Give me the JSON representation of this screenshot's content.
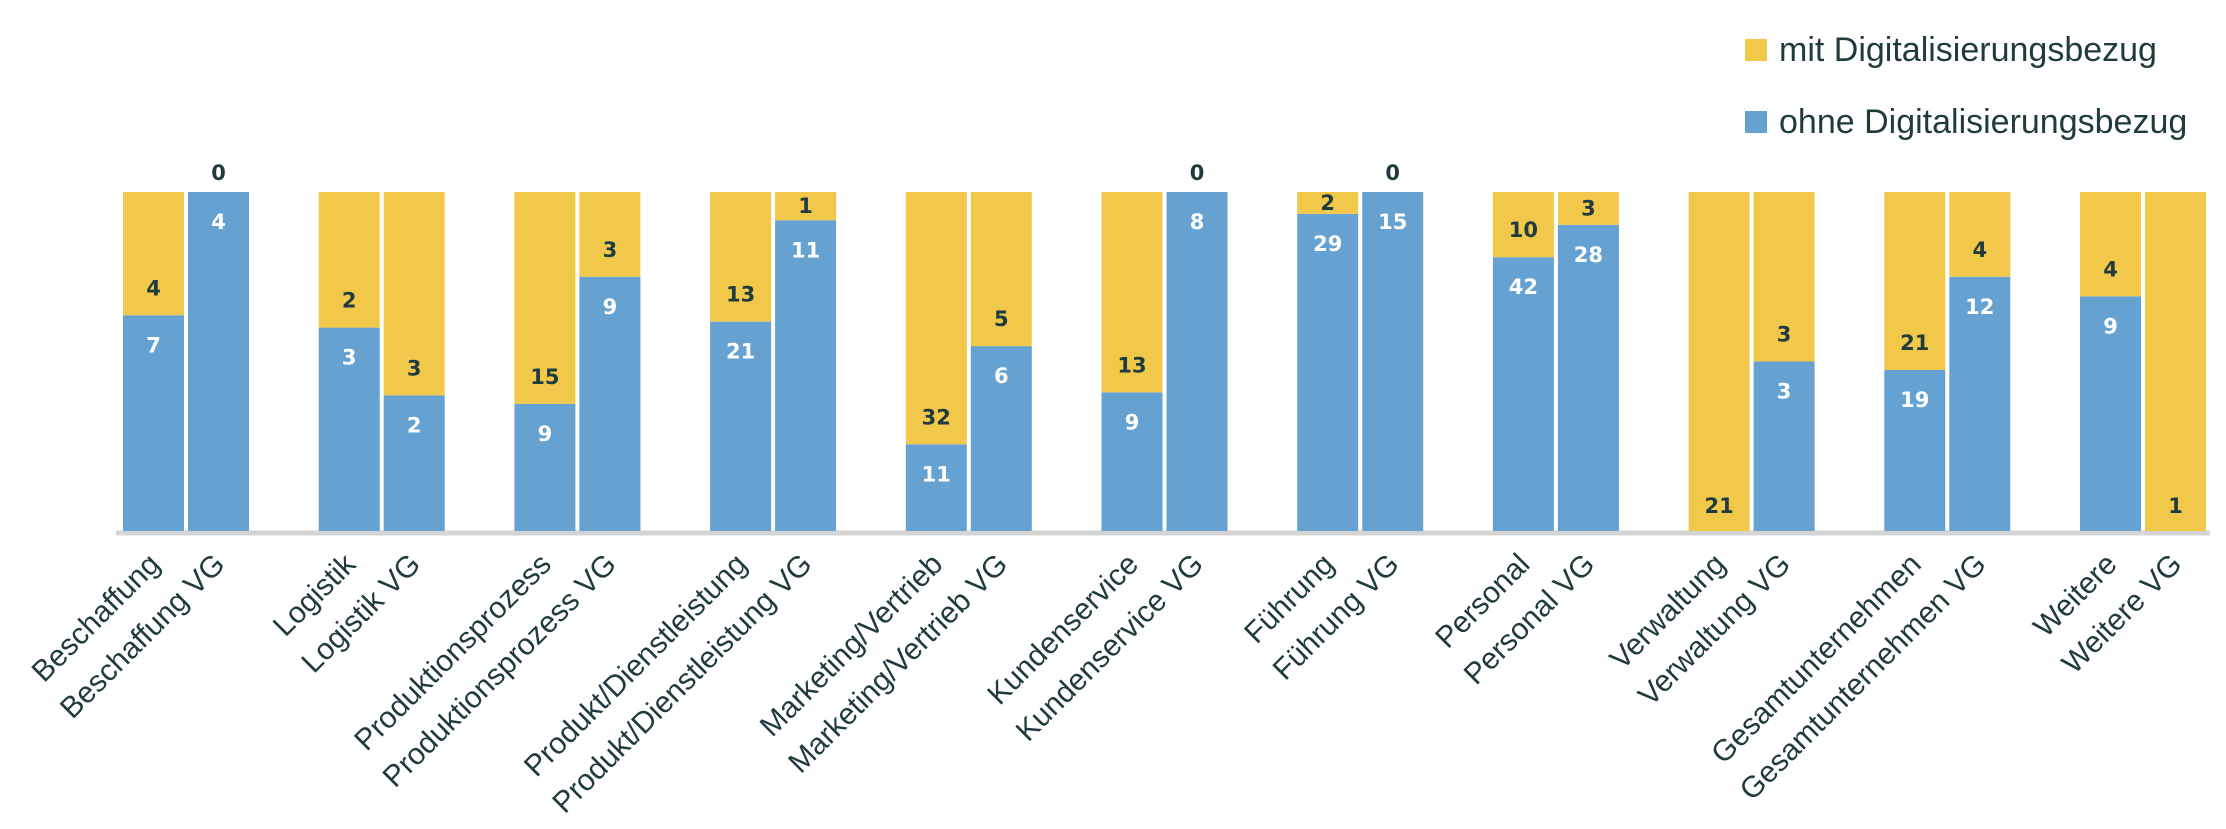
{
  "chart_data": {
    "type": "bar",
    "stacked": "percent",
    "categories": [
      "Beschaffung",
      "Beschaffung VG",
      "Logistik",
      "Logistik VG",
      "Produktionsprozess",
      "Produktionsprozess VG",
      "Produkt/Dienstleistung",
      "Produkt/Dienstleistung VG",
      "Marketing/Vertrieb",
      "Marketing/Vertrieb VG",
      "Kundenservice",
      "Kundenservice VG",
      "Führung",
      "Führung VG",
      "Personal",
      "Personal VG",
      "Verwaltung",
      "Verwaltung VG",
      "Gesamtunternehmen",
      "Gesamtunternehmen VG",
      "Weitere",
      "Weitere VG"
    ],
    "series": [
      {
        "name": "ohne Digitalisierungsbezug",
        "color": "#65a1d1",
        "values": [
          7,
          4,
          3,
          2,
          9,
          9,
          21,
          11,
          11,
          6,
          9,
          8,
          29,
          15,
          42,
          28,
          0,
          3,
          19,
          12,
          9,
          0
        ]
      },
      {
        "name": "mit Digitalisierungsbezug",
        "color": "#f2c84b",
        "values": [
          4,
          0,
          2,
          3,
          15,
          3,
          13,
          1,
          32,
          5,
          13,
          0,
          2,
          0,
          10,
          3,
          21,
          3,
          21,
          4,
          4,
          1
        ]
      }
    ],
    "ylim": [
      0,
      100
    ],
    "grid": false,
    "legend": "top-right"
  },
  "legend": {
    "items": [
      {
        "label": "mit Digitalisierungsbezug",
        "color": "#f2c84b"
      },
      {
        "label": "ohne Digitalisierungsbezug",
        "color": "#65a1d1"
      }
    ]
  }
}
